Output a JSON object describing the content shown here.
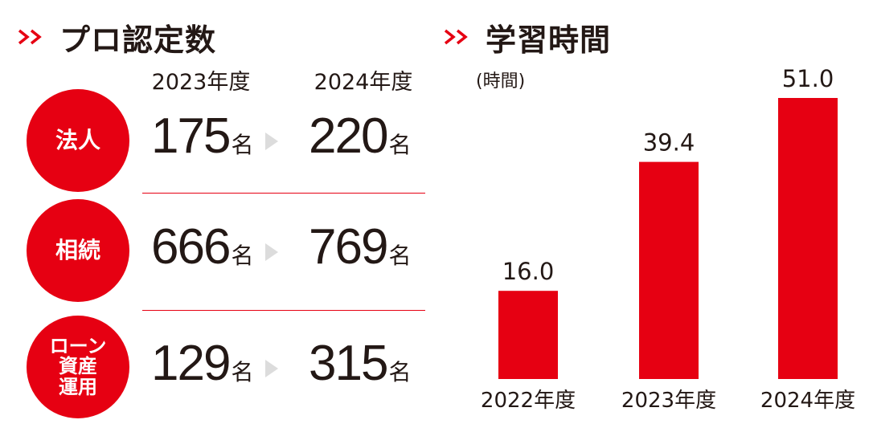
{
  "colors": {
    "accent": "#e60012",
    "text": "#231815",
    "arrow": "#dcdcdc"
  },
  "left_section": {
    "title": "プロ認定数",
    "year_headers": [
      "2023年度",
      "2024年度"
    ],
    "rows": [
      {
        "label_lines": [
          "法人"
        ],
        "from": "175",
        "to": "220",
        "unit": "名"
      },
      {
        "label_lines": [
          "相続"
        ],
        "from": "666",
        "to": "769",
        "unit": "名"
      },
      {
        "label_lines": [
          "ローン",
          "資産",
          "運用"
        ],
        "from": "129",
        "to": "315",
        "unit": "名"
      }
    ]
  },
  "right_section": {
    "title": "学習時間",
    "unit_label": "(時間)"
  },
  "chart_data": {
    "type": "bar",
    "title": "学習時間",
    "ylabel": "(時間)",
    "categories": [
      "2022年度",
      "2023年度",
      "2024年度"
    ],
    "values": [
      16.0,
      39.4,
      51.0
    ],
    "value_labels": [
      "16.0",
      "39.4",
      "51.0"
    ],
    "ylim": [
      0,
      55
    ],
    "grid": false,
    "color": "#e60012"
  }
}
